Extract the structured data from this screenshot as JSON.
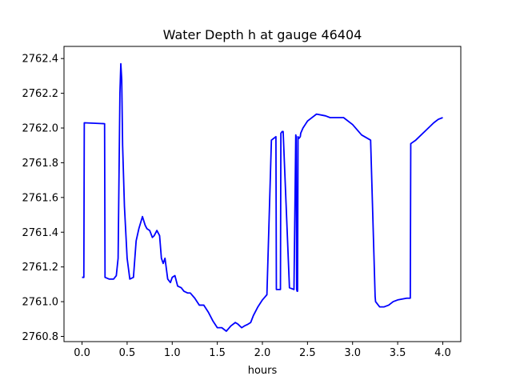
{
  "chart_data": {
    "type": "line",
    "title": "Water Depth h at gauge 46404",
    "xlabel": "hours",
    "ylabel": "",
    "xlim": [
      -0.2,
      4.2
    ],
    "ylim": [
      2760.77,
      2762.47
    ],
    "xticks": [
      0.0,
      0.5,
      1.0,
      1.5,
      2.0,
      2.5,
      3.0,
      3.5,
      4.0
    ],
    "xtick_labels": [
      "0.0",
      "0.5",
      "1.0",
      "1.5",
      "2.0",
      "2.5",
      "3.0",
      "3.5",
      "4.0"
    ],
    "yticks": [
      2760.8,
      2761.0,
      2761.2,
      2761.4,
      2761.6,
      2761.8,
      2762.0,
      2762.2,
      2762.4
    ],
    "ytick_labels": [
      "2760.8",
      "2761.0",
      "2761.2",
      "2761.4",
      "2761.6",
      "2761.8",
      "2762.0",
      "2762.2",
      "2762.4"
    ],
    "grid": false,
    "series": [
      {
        "color": "#0000ff",
        "x": [
          0.0,
          0.02,
          0.025,
          0.25,
          0.255,
          0.3,
          0.35,
          0.38,
          0.4,
          0.42,
          0.43,
          0.44,
          0.45,
          0.47,
          0.5,
          0.53,
          0.57,
          0.6,
          0.63,
          0.67,
          0.7,
          0.72,
          0.75,
          0.78,
          0.8,
          0.83,
          0.86,
          0.88,
          0.9,
          0.92,
          0.95,
          0.98,
          1.0,
          1.03,
          1.06,
          1.1,
          1.13,
          1.17,
          1.2,
          1.25,
          1.3,
          1.35,
          1.4,
          1.45,
          1.5,
          1.55,
          1.6,
          1.65,
          1.7,
          1.73,
          1.77,
          1.8,
          1.84,
          1.87,
          1.9,
          1.95,
          2.0,
          2.05,
          2.1,
          2.15,
          2.155,
          2.2,
          2.205,
          2.22,
          2.225,
          2.23,
          2.3,
          2.35,
          2.37,
          2.375,
          2.38,
          2.385,
          2.39,
          2.395,
          2.4,
          2.405,
          2.42,
          2.425,
          2.45,
          2.5,
          2.6,
          2.7,
          2.75,
          2.8,
          2.9,
          3.0,
          3.1,
          3.2,
          3.25,
          3.255,
          3.3,
          3.35,
          3.4,
          3.45,
          3.5,
          3.6,
          3.64,
          3.645,
          3.7,
          3.8,
          3.9,
          3.95,
          4.0
        ],
        "y": [
          2761.14,
          2761.14,
          2762.03,
          2762.025,
          2761.14,
          2761.13,
          2761.13,
          2761.15,
          2761.25,
          2762.2,
          2762.37,
          2762.28,
          2761.9,
          2761.55,
          2761.25,
          2761.13,
          2761.14,
          2761.35,
          2761.42,
          2761.49,
          2761.44,
          2761.42,
          2761.41,
          2761.37,
          2761.38,
          2761.41,
          2761.38,
          2761.25,
          2761.22,
          2761.25,
          2761.13,
          2761.11,
          2761.14,
          2761.15,
          2761.09,
          2761.08,
          2761.06,
          2761.05,
          2761.05,
          2761.02,
          2760.98,
          2760.98,
          2760.94,
          2760.89,
          2760.85,
          2760.85,
          2760.83,
          2760.86,
          2760.88,
          2760.87,
          2760.85,
          2760.86,
          2760.87,
          2760.88,
          2760.92,
          2760.97,
          2761.01,
          2761.04,
          2761.93,
          2761.95,
          2761.07,
          2761.07,
          2761.97,
          2761.98,
          2761.98,
          2761.98,
          2761.08,
          2761.07,
          2761.96,
          2761.95,
          2761.07,
          2761.06,
          2761.06,
          2761.95,
          2761.94,
          2761.94,
          2761.95,
          2761.97,
          2762.0,
          2762.04,
          2762.08,
          2762.07,
          2762.06,
          2762.06,
          2762.06,
          2762.02,
          2761.96,
          2761.93,
          2761.03,
          2761.0,
          2760.97,
          2760.97,
          2760.98,
          2761.0,
          2761.01,
          2761.02,
          2761.02,
          2761.91,
          2761.93,
          2761.98,
          2762.03,
          2762.05,
          2762.06
        ]
      }
    ]
  }
}
